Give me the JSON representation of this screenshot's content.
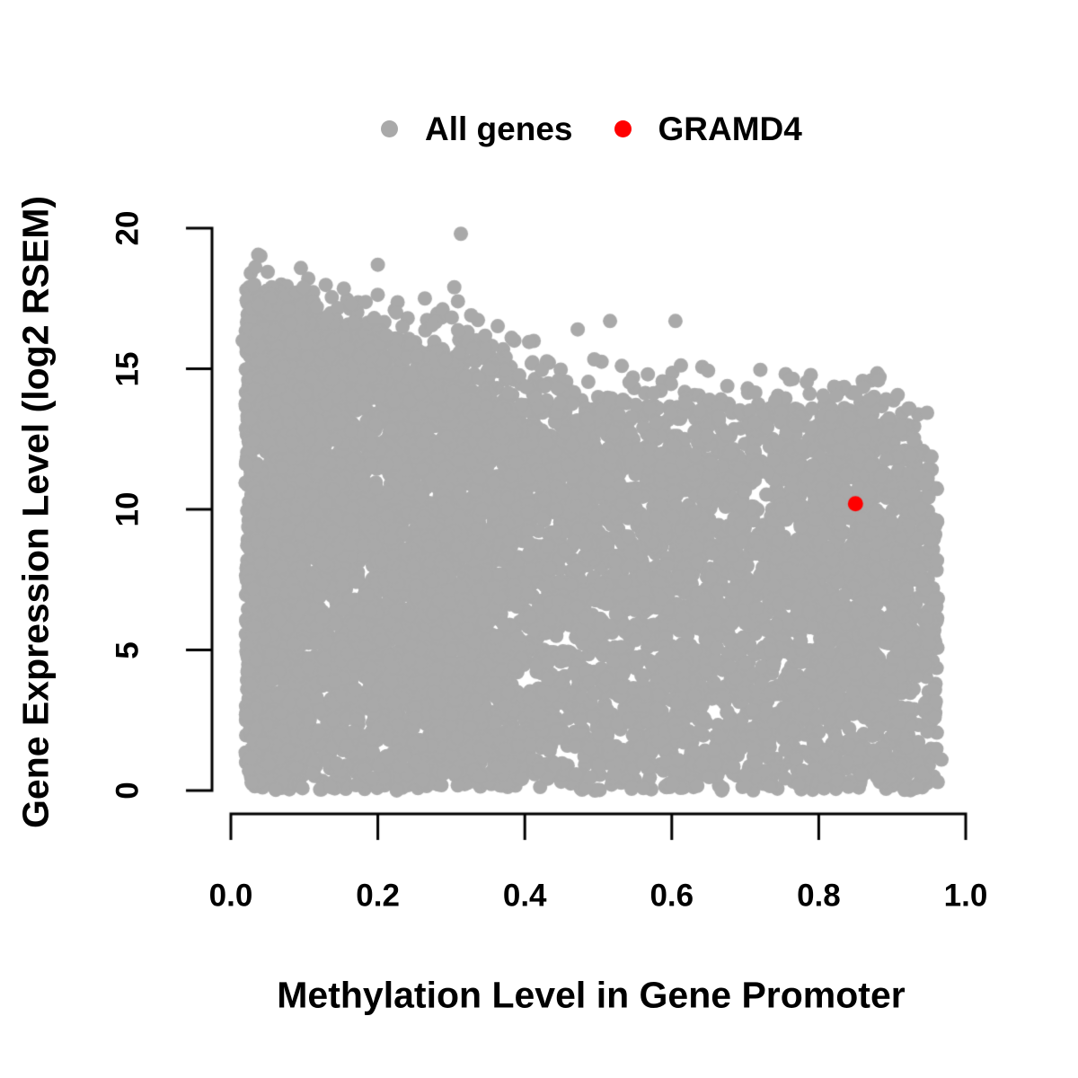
{
  "chart_data": {
    "type": "scatter",
    "title": "",
    "xlabel": "Methylation Level in Gene Promoter",
    "ylabel": "Gene Expression Level (log2 RSEM)",
    "xlim": [
      0.0,
      1.0
    ],
    "ylim": [
      0,
      20
    ],
    "grid": false,
    "legend_position": "top-center",
    "x_ticks": [
      {
        "value": 0.0,
        "label": "0.0"
      },
      {
        "value": 0.2,
        "label": "0.2"
      },
      {
        "value": 0.4,
        "label": "0.4"
      },
      {
        "value": 0.6,
        "label": "0.6"
      },
      {
        "value": 0.8,
        "label": "0.8"
      },
      {
        "value": 1.0,
        "label": "1.0"
      }
    ],
    "y_ticks": [
      {
        "value": 0,
        "label": "0"
      },
      {
        "value": 5,
        "label": "5"
      },
      {
        "value": 10,
        "label": "10"
      },
      {
        "value": 15,
        "label": "15"
      },
      {
        "value": 20,
        "label": "20"
      }
    ],
    "legend": [
      {
        "label": "All genes",
        "color": "#A9A9A9",
        "marker": "circle"
      },
      {
        "label": "GRAMD4",
        "color": "#FF0000",
        "marker": "circle"
      }
    ],
    "axis_color": "#000000",
    "random_seed": 42,
    "series": [
      {
        "name": "All genes",
        "color": "#A9A9A9",
        "kind": "dense-cloud",
        "point_count": 9500,
        "x_range": [
          0.02,
          0.962
        ],
        "x_density_segments": [
          {
            "min": 0.02,
            "max": 0.1,
            "weight": 0.17
          },
          {
            "min": 0.1,
            "max": 0.38,
            "weight": 0.36
          },
          {
            "min": 0.38,
            "max": 0.6,
            "weight": 0.17
          },
          {
            "min": 0.6,
            "max": 0.78,
            "weight": 0.14
          },
          {
            "min": 0.78,
            "max": 0.93,
            "weight": 0.14
          },
          {
            "min": 0.93,
            "max": 0.962,
            "weight": 0.02
          }
        ],
        "dense_top_envelope": [
          [
            0.02,
            15.5
          ],
          [
            0.08,
            14.9
          ],
          [
            0.16,
            14.3
          ],
          [
            0.24,
            13.7
          ],
          [
            0.32,
            13.1
          ],
          [
            0.4,
            12.4
          ],
          [
            0.48,
            11.8
          ],
          [
            0.58,
            11.4
          ],
          [
            0.68,
            11.3
          ],
          [
            0.78,
            11.4
          ],
          [
            0.86,
            11.3
          ],
          [
            0.92,
            10.7
          ],
          [
            0.96,
            9.2
          ]
        ],
        "scatter_band_above": 2.2,
        "notable_points": [
          [
            0.313,
            19.8
          ],
          [
            0.2,
            18.7
          ],
          [
            0.099,
            17.9
          ],
          [
            0.304,
            17.9
          ],
          [
            0.264,
            17.5
          ],
          [
            0.309,
            17.4
          ],
          [
            0.117,
            17.2
          ],
          [
            0.225,
            17.0
          ],
          [
            0.327,
            16.9
          ],
          [
            0.081,
            16.6
          ],
          [
            0.516,
            16.7
          ],
          [
            0.605,
            16.7
          ],
          [
            0.472,
            16.4
          ],
          [
            0.036,
            16.3
          ],
          [
            0.382,
            16.1
          ],
          [
            0.016,
            16.0
          ],
          [
            0.869,
            13.9
          ],
          [
            0.817,
            13.3
          ],
          [
            0.664,
            13.3
          ],
          [
            0.713,
            13.1
          ],
          [
            0.769,
            13.0
          ],
          [
            0.79,
            12.9
          ],
          [
            0.648,
            12.6
          ],
          [
            0.945,
            10.9
          ],
          [
            0.952,
            8.9
          ],
          [
            0.958,
            6.8
          ],
          [
            0.94,
            7.5
          ],
          [
            0.967,
            1.1
          ]
        ]
      },
      {
        "name": "GRAMD4",
        "color": "#FF0000",
        "kind": "highlight",
        "points": [
          [
            0.85,
            10.2
          ]
        ]
      }
    ]
  }
}
